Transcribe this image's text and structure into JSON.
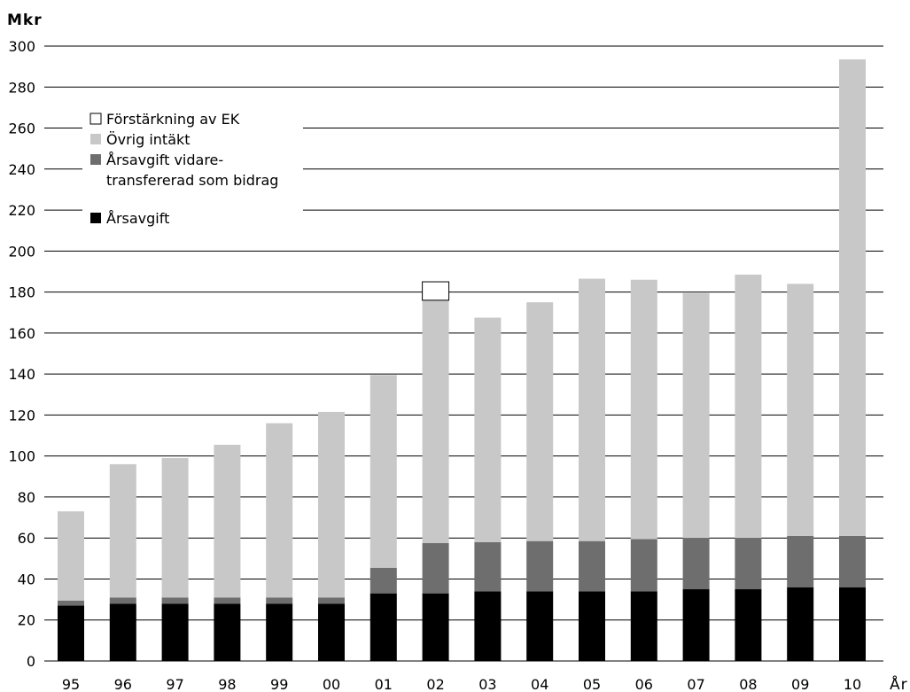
{
  "chart_data": {
    "type": "bar",
    "stacked": true,
    "ylabel": "Mkr",
    "xlabel": "År",
    "ylim": [
      0,
      300
    ],
    "y_ticks": [
      0,
      20,
      40,
      60,
      80,
      100,
      120,
      140,
      160,
      180,
      200,
      220,
      240,
      260,
      280,
      300
    ],
    "grid": true,
    "legend_position": "top-left",
    "categories": [
      "95",
      "96",
      "97",
      "98",
      "99",
      "00",
      "01",
      "02",
      "03",
      "04",
      "05",
      "06",
      "07",
      "08",
      "09",
      "10"
    ],
    "series": [
      {
        "name": "Årsavgift",
        "color": "#000000",
        "values": [
          27,
          28,
          28,
          28,
          28,
          28,
          33,
          33,
          34,
          34,
          34,
          34,
          35,
          35,
          36,
          36
        ]
      },
      {
        "name": "Årsavgift vidaretransfererad som bidrag",
        "color": "#6e6e6e",
        "values": [
          2.5,
          3,
          3,
          3,
          3,
          3,
          12.5,
          24.5,
          24,
          24.5,
          24.5,
          25.5,
          25,
          25,
          25,
          25
        ]
      },
      {
        "name": "Övrig intäkt",
        "color": "#c8c8c8",
        "values": [
          43.5,
          65,
          68,
          74.5,
          85,
          90.5,
          94,
          118.5,
          109.5,
          116.5,
          128,
          126.5,
          119.5,
          128.5,
          123,
          232.5
        ]
      },
      {
        "name": "Förstärkning av EK",
        "color": "#ffffff",
        "values": [
          0,
          0,
          0,
          0,
          0,
          0,
          0,
          9,
          0,
          0,
          0,
          0,
          0,
          0,
          0,
          0
        ]
      }
    ]
  },
  "legend": [
    {
      "label": "Förstärkning av EK",
      "color": "#ffffff"
    },
    {
      "label": "Övrig intäkt",
      "color": "#c8c8c8"
    },
    {
      "label": "Årsavgift vidare-",
      "label2": "transfererad som bidrag",
      "color": "#6e6e6e"
    },
    {
      "label": "Årsavgift",
      "color": "#000000"
    }
  ]
}
